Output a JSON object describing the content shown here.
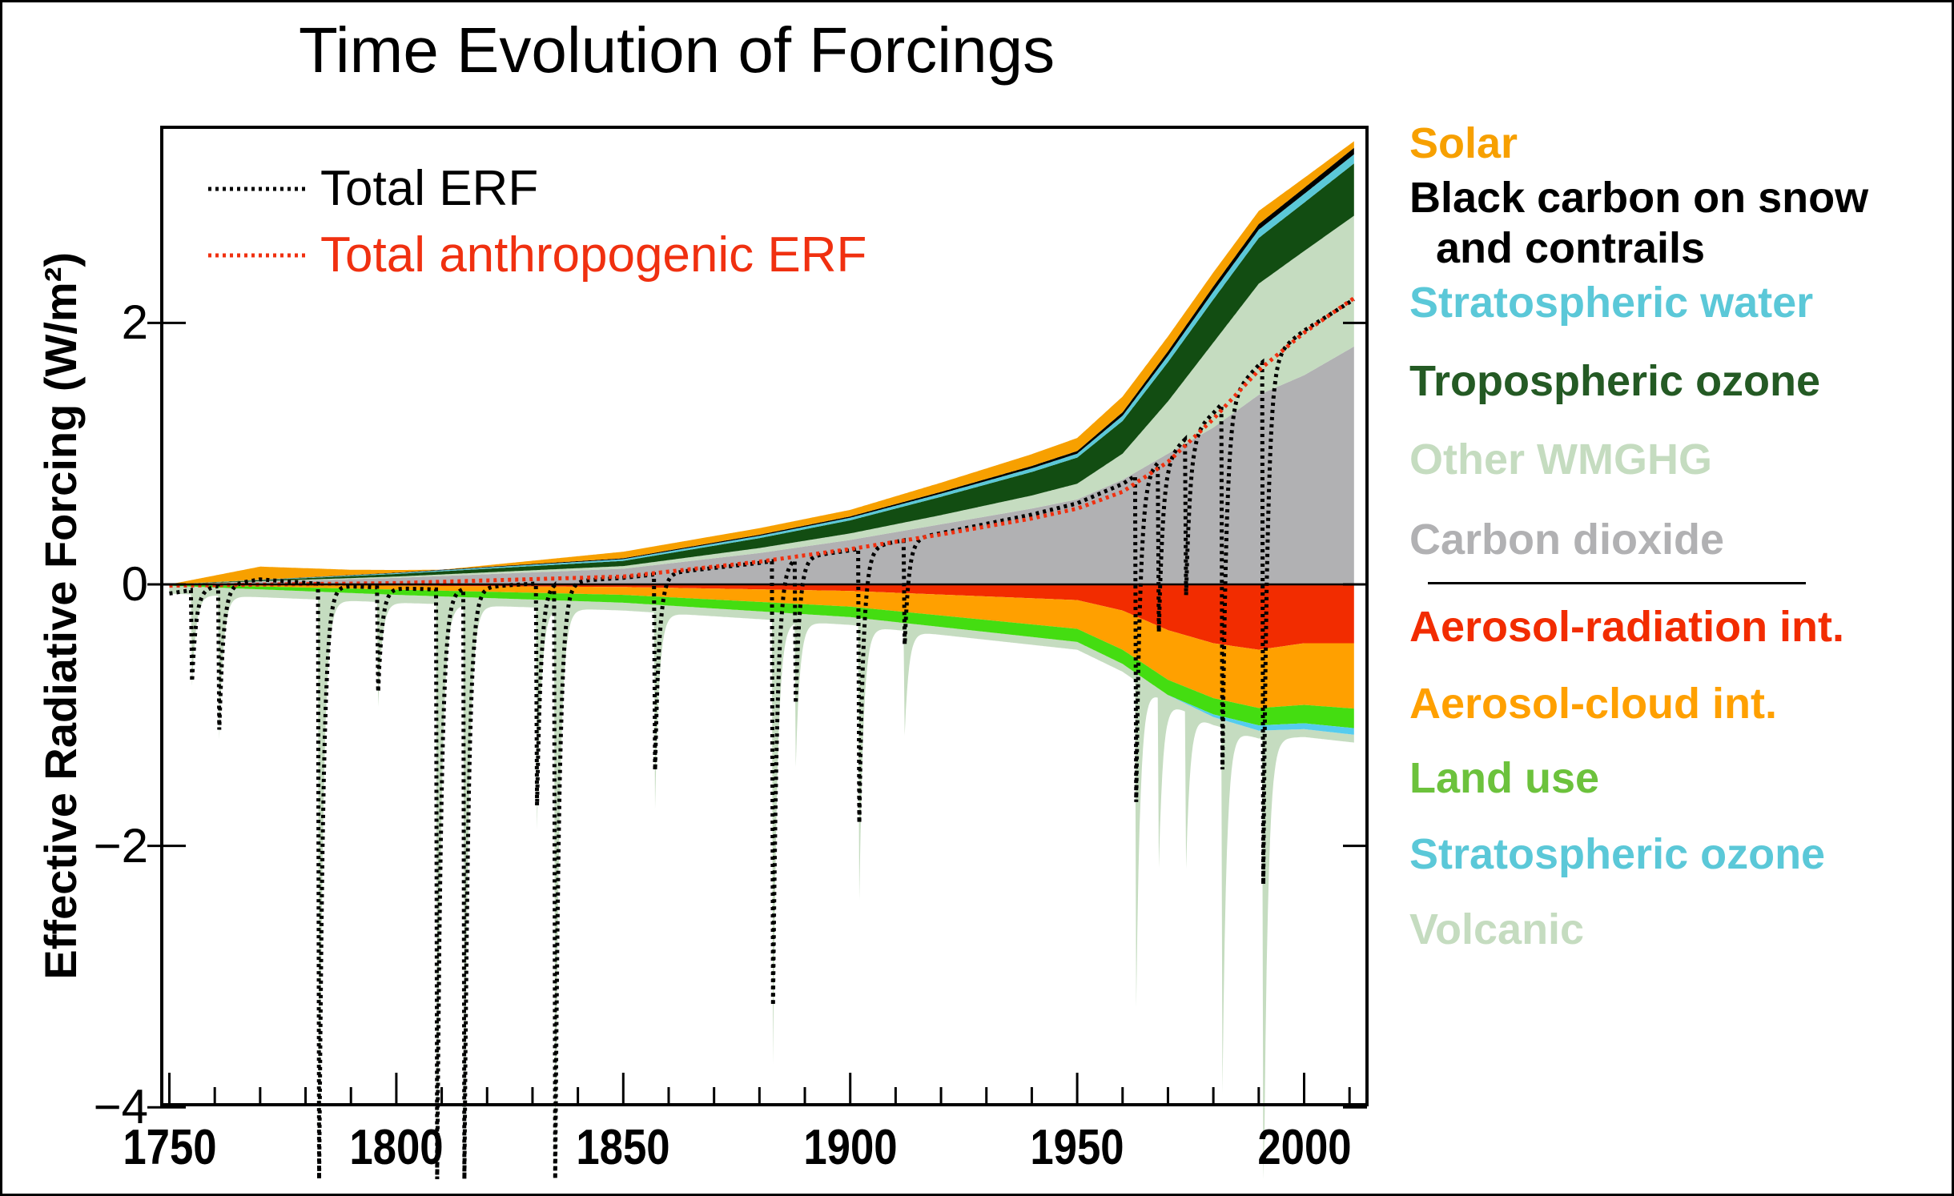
{
  "chart_data": {
    "type": "area",
    "title": "Time Evolution of Forcings",
    "xlabel": "",
    "ylabel": "Effective Radiative Forcing (W/m²)",
    "xlim": [
      1750,
      2011
    ],
    "ylim": [
      -4,
      3.5
    ],
    "x_ticks": [
      1750,
      1800,
      1850,
      1900,
      1950,
      2000
    ],
    "x_tick_labels": [
      "1750",
      "1800",
      "1850",
      "1900",
      "1950",
      "2000"
    ],
    "y_ticks": [
      2,
      0,
      -2,
      -4
    ],
    "y_tick_labels": [
      "2",
      "0",
      "−2",
      "−4"
    ],
    "grid": false,
    "legend_placement": "right",
    "positive_series": [
      {
        "name": "Carbon dioxide",
        "color": "#b1b1b3",
        "keyframes": [
          [
            1750,
            0
          ],
          [
            1800,
            0.05
          ],
          [
            1850,
            0.12
          ],
          [
            1880,
            0.24
          ],
          [
            1900,
            0.34
          ],
          [
            1920,
            0.46
          ],
          [
            1940,
            0.58
          ],
          [
            1950,
            0.65
          ],
          [
            1960,
            0.8
          ],
          [
            1970,
            1.0
          ],
          [
            1980,
            1.2
          ],
          [
            1990,
            1.45
          ],
          [
            2000,
            1.6
          ],
          [
            2011,
            1.82
          ]
        ]
      },
      {
        "name": "Other WMGHG",
        "color": "#c5dcc0",
        "keyframes": [
          [
            1750,
            0
          ],
          [
            1800,
            0.01
          ],
          [
            1850,
            0.02
          ],
          [
            1900,
            0.05
          ],
          [
            1920,
            0.07
          ],
          [
            1940,
            0.1
          ],
          [
            1950,
            0.12
          ],
          [
            1960,
            0.2
          ],
          [
            1970,
            0.4
          ],
          [
            1980,
            0.65
          ],
          [
            1990,
            0.85
          ],
          [
            2000,
            0.95
          ],
          [
            2011,
            1.0
          ]
        ]
      },
      {
        "name": "Tropospheric ozone",
        "color": "#124d12",
        "keyframes": [
          [
            1750,
            0
          ],
          [
            1800,
            0.02
          ],
          [
            1850,
            0.04
          ],
          [
            1900,
            0.1
          ],
          [
            1950,
            0.2
          ],
          [
            1970,
            0.3
          ],
          [
            1980,
            0.33
          ],
          [
            2000,
            0.37
          ],
          [
            2011,
            0.4
          ]
        ]
      },
      {
        "name": "Stratospheric water",
        "color": "#5bc8d8",
        "keyframes": [
          [
            1750,
            0
          ],
          [
            1900,
            0.02
          ],
          [
            1950,
            0.03
          ],
          [
            1980,
            0.06
          ],
          [
            2011,
            0.07
          ]
        ]
      },
      {
        "name": "Black carbon on snow and contrails",
        "color": "#000000",
        "keyframes": [
          [
            1750,
            0
          ],
          [
            1900,
            0.01
          ],
          [
            1950,
            0.02
          ],
          [
            1980,
            0.04
          ],
          [
            2011,
            0.05
          ]
        ]
      },
      {
        "name": "Solar",
        "color": "#f7a000",
        "keyframes": [
          [
            1750,
            0
          ],
          [
            1770,
            0.1
          ],
          [
            1790,
            0.04
          ],
          [
            1810,
            0.0
          ],
          [
            1850,
            0.05
          ],
          [
            1900,
            0.05
          ],
          [
            1950,
            0.1
          ],
          [
            1960,
            0.12
          ],
          [
            1990,
            0.1
          ],
          [
            2011,
            0.05
          ]
        ]
      }
    ],
    "negative_series": [
      {
        "name": "Aerosol-radiation int.",
        "color": "#f22c00",
        "keyframes": [
          [
            1750,
            0
          ],
          [
            1850,
            -0.02
          ],
          [
            1900,
            -0.05
          ],
          [
            1950,
            -0.12
          ],
          [
            1960,
            -0.2
          ],
          [
            1970,
            -0.35
          ],
          [
            1980,
            -0.45
          ],
          [
            1990,
            -0.5
          ],
          [
            2000,
            -0.45
          ],
          [
            2011,
            -0.45
          ]
        ]
      },
      {
        "name": "Aerosol-cloud int.",
        "color": "#ffa000",
        "keyframes": [
          [
            1750,
            0
          ],
          [
            1800,
            -0.03
          ],
          [
            1850,
            -0.06
          ],
          [
            1900,
            -0.12
          ],
          [
            1950,
            -0.22
          ],
          [
            1970,
            -0.38
          ],
          [
            1980,
            -0.42
          ],
          [
            2011,
            -0.5
          ]
        ]
      },
      {
        "name": "Land use",
        "color": "#44dd11",
        "keyframes": [
          [
            1750,
            -0.01
          ],
          [
            1800,
            -0.04
          ],
          [
            1850,
            -0.06
          ],
          [
            1900,
            -0.08
          ],
          [
            1950,
            -0.1
          ],
          [
            2011,
            -0.15
          ]
        ]
      },
      {
        "name": "Stratospheric ozone",
        "color": "#55ccee",
        "keyframes": [
          [
            1750,
            0
          ],
          [
            1970,
            0
          ],
          [
            1980,
            -0.02
          ],
          [
            1990,
            -0.04
          ],
          [
            2011,
            -0.05
          ]
        ]
      }
    ],
    "volcanic": {
      "name": "Volcanic",
      "color": "#c5dcc0",
      "background": -0.06,
      "decay_per_year": 1.1,
      "events": [
        [
          1755,
          -0.7
        ],
        [
          1761,
          -1.1
        ],
        [
          1783,
          -4.6
        ],
        [
          1796,
          -0.8
        ],
        [
          1809,
          -4.6
        ],
        [
          1815,
          -4.6
        ],
        [
          1831,
          -1.7
        ],
        [
          1835,
          -4.6
        ],
        [
          1857,
          -1.5
        ],
        [
          1883,
          -3.4
        ],
        [
          1888,
          -1.1
        ],
        [
          1902,
          -2.1
        ],
        [
          1912,
          -0.8
        ],
        [
          1963,
          -2.5
        ],
        [
          1968,
          -1.3
        ],
        [
          1974,
          -1.2
        ],
        [
          1982,
          -2.8
        ],
        [
          1991,
          -4.0
        ]
      ]
    },
    "lines": [
      {
        "name": "Total ERF",
        "color": "#000000",
        "style": "dotted",
        "includes": "all"
      },
      {
        "name": "Total anthropogenic ERF",
        "color": "#f03010",
        "style": "dotted",
        "includes": "anthropogenic"
      }
    ]
  },
  "legend": {
    "items": [
      {
        "label": "Solar",
        "color": "#f7a000"
      },
      {
        "label": "Black carbon on snow",
        "color": "#000000"
      },
      {
        "label": "and contrails",
        "color": "#000000"
      },
      {
        "label": "Stratospheric water",
        "color": "#5bc8d8"
      },
      {
        "label": "Tropospheric ozone",
        "color": "#245a24"
      },
      {
        "label": "Other WMGHG",
        "color": "#c5dcc0"
      },
      {
        "label": "Carbon dioxide",
        "color": "#b1b1b3"
      },
      {
        "label": "Aerosol-radiation int.",
        "color": "#f22c00"
      },
      {
        "label": "Aerosol-cloud int.",
        "color": "#ffa000"
      },
      {
        "label": "Land use",
        "color": "#6cc23c"
      },
      {
        "label": "Stratospheric ozone",
        "color": "#5bc8d8"
      },
      {
        "label": "Volcanic",
        "color": "#c5dcc0"
      }
    ],
    "inset": [
      {
        "label": "Total ERF",
        "color": "#000000"
      },
      {
        "label": "Total anthropogenic ERF",
        "color": "#f03010"
      }
    ]
  }
}
